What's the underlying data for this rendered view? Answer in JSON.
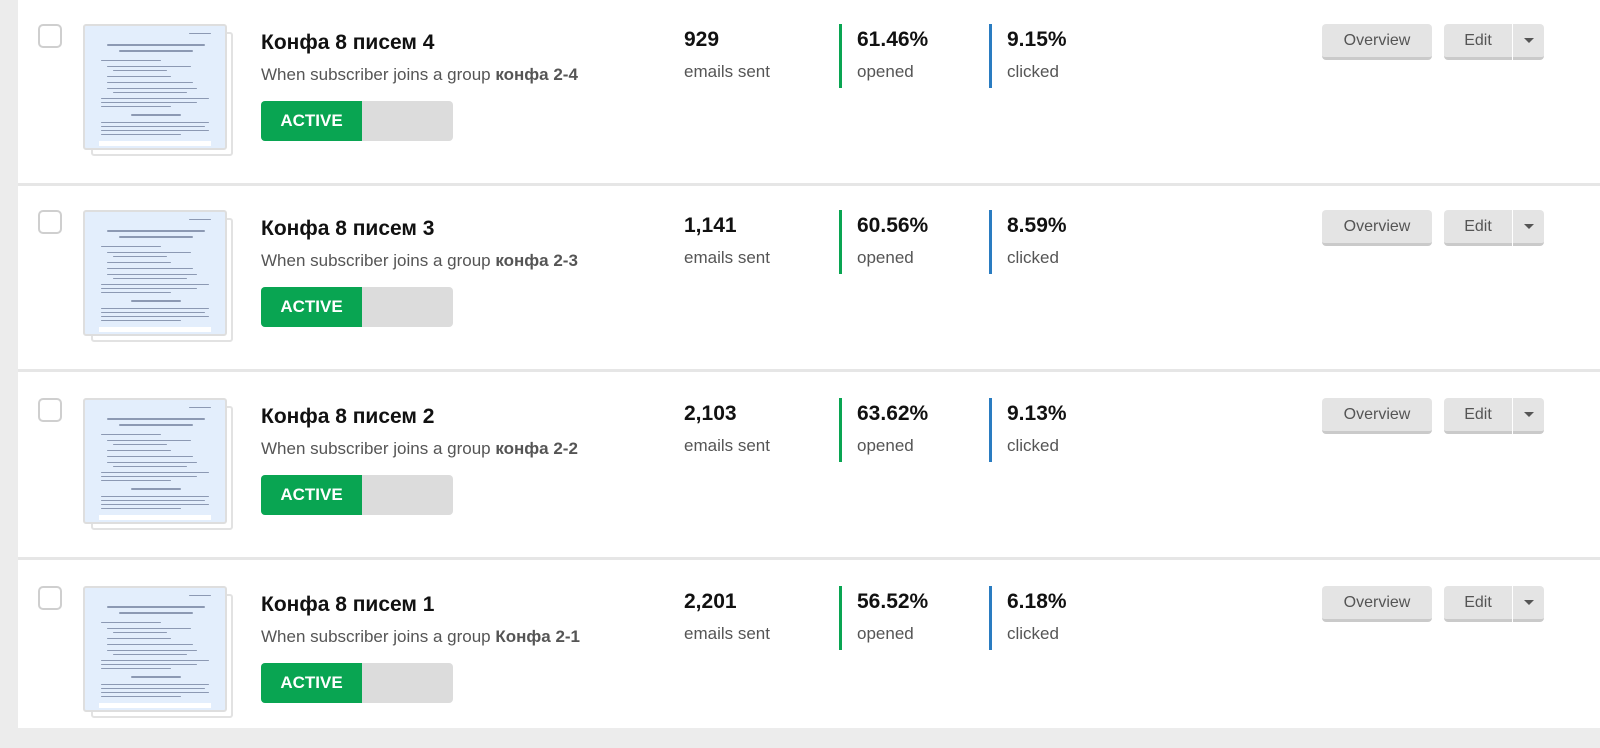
{
  "automations": [
    {
      "title": "Конфа 8 писем 4",
      "trigger_prefix": "When subscriber joins a group",
      "trigger_group": "конфа 2-4",
      "status": "ACTIVE",
      "emails_sent": "929",
      "emails_sent_label": "emails sent",
      "opened": "61.46%",
      "opened_label": "opened",
      "clicked": "9.15%",
      "clicked_label": "clicked",
      "overview_label": "Overview",
      "edit_label": "Edit"
    },
    {
      "title": "Конфа 8 писем 3",
      "trigger_prefix": "When subscriber joins a group",
      "trigger_group": "конфа 2-3",
      "status": "ACTIVE",
      "emails_sent": "1,141",
      "emails_sent_label": "emails sent",
      "opened": "60.56%",
      "opened_label": "opened",
      "clicked": "8.59%",
      "clicked_label": "clicked",
      "overview_label": "Overview",
      "edit_label": "Edit"
    },
    {
      "title": "Конфа 8 писем 2",
      "trigger_prefix": "When subscriber joins a group",
      "trigger_group": "конфа 2-2",
      "status": "ACTIVE",
      "emails_sent": "2,103",
      "emails_sent_label": "emails sent",
      "opened": "63.62%",
      "opened_label": "opened",
      "clicked": "9.13%",
      "clicked_label": "clicked",
      "overview_label": "Overview",
      "edit_label": "Edit"
    },
    {
      "title": "Конфа 8 писем 1",
      "trigger_prefix": "When subscriber joins a group",
      "trigger_group": "Конфа 2-1",
      "status": "ACTIVE",
      "emails_sent": "2,201",
      "emails_sent_label": "emails sent",
      "opened": "56.52%",
      "opened_label": "opened",
      "clicked": "6.18%",
      "clicked_label": "clicked",
      "overview_label": "Overview",
      "edit_label": "Edit"
    }
  ],
  "colors": {
    "active_green": "#09a552",
    "opened_bar": "#09a552",
    "clicked_bar": "#2a7cc1",
    "thumbnail_bg": "#e3eefc"
  },
  "icons": {
    "dropdown": "caret-down-icon",
    "checkbox": "checkbox-icon"
  }
}
